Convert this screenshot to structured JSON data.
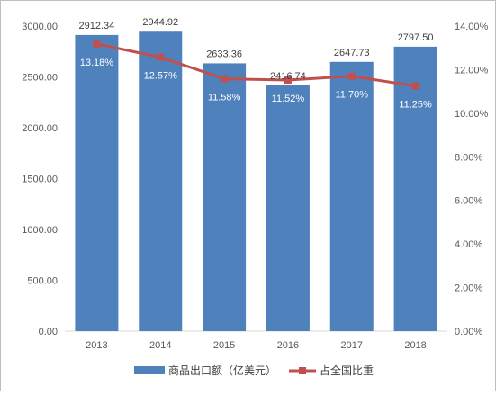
{
  "chart_data": {
    "type": "bar",
    "categories": [
      "2013",
      "2014",
      "2015",
      "2016",
      "2017",
      "2018"
    ],
    "series": [
      {
        "name": "商品出口额（亿美元）",
        "type": "bar",
        "axis": "left",
        "values": [
          2912.34,
          2944.92,
          2633.36,
          2416.74,
          2647.73,
          2797.5
        ],
        "labels": [
          "2912.34",
          "2944.92",
          "2633.36",
          "2416.74",
          "2647.73",
          "2797.50"
        ],
        "color": "#4f81bd"
      },
      {
        "name": "占全国比重",
        "type": "line",
        "axis": "right",
        "values": [
          13.18,
          12.57,
          11.58,
          11.52,
          11.7,
          11.25
        ],
        "labels": [
          "13.18%",
          "12.57%",
          "11.58%",
          "11.52%",
          "11.70%",
          "11.25%"
        ],
        "color": "#c0504d"
      }
    ],
    "y_left": {
      "range": [
        0,
        3000
      ],
      "ticks": [
        "0.00",
        "500.00",
        "1000.00",
        "1500.00",
        "2000.00",
        "2500.00",
        "3000.00"
      ]
    },
    "y_right": {
      "range": [
        0,
        14
      ],
      "ticks": [
        "0.00%",
        "2.00%",
        "4.00%",
        "6.00%",
        "8.00%",
        "10.00%",
        "12.00%",
        "14.00%"
      ]
    },
    "grid": false,
    "legend_position": "bottom"
  }
}
